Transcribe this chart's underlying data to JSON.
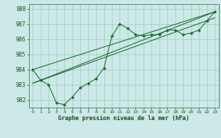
{
  "background_color": "#cce8e8",
  "grid_color": "#99ccbb",
  "line_color": "#1a6e2e",
  "marker_color": "#1a6e2e",
  "xlabel": "Graphe pression niveau de la mer (hPa)",
  "ylim": [
    981.5,
    988.3
  ],
  "xlim": [
    -0.5,
    23.5
  ],
  "yticks": [
    982,
    983,
    984,
    985,
    986,
    987,
    988
  ],
  "xticks": [
    0,
    1,
    2,
    3,
    4,
    5,
    6,
    7,
    8,
    9,
    10,
    11,
    12,
    13,
    14,
    15,
    16,
    17,
    18,
    19,
    20,
    21,
    22,
    23
  ],
  "series1": {
    "x": [
      0,
      1,
      2,
      3,
      4,
      5,
      6,
      7,
      8,
      9,
      10,
      11,
      12,
      13,
      14,
      15,
      16,
      17,
      18,
      19,
      20,
      21,
      22,
      23
    ],
    "y": [
      984.0,
      983.3,
      983.0,
      981.8,
      981.7,
      982.2,
      982.8,
      983.1,
      983.4,
      984.1,
      986.2,
      987.0,
      986.7,
      986.3,
      986.2,
      986.3,
      986.3,
      986.6,
      986.6,
      986.3,
      986.4,
      986.6,
      987.2,
      987.8
    ]
  },
  "series2": {
    "x": [
      0,
      23
    ],
    "y": [
      983.1,
      987.8
    ]
  },
  "series3": {
    "x": [
      0,
      23
    ],
    "y": [
      983.1,
      987.4
    ]
  },
  "series4": {
    "x": [
      0,
      23
    ],
    "y": [
      984.0,
      987.8
    ]
  }
}
